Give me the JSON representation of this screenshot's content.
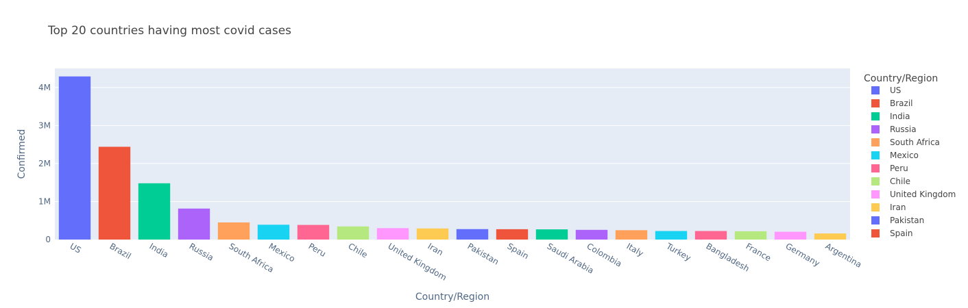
{
  "chart_data": {
    "type": "bar",
    "title": "Top 20 countries having most covid cases",
    "xlabel": "Country/Region",
    "ylabel": "Confirmed",
    "ylim": [
      0,
      4500000
    ],
    "yticks": [
      0,
      1000000,
      2000000,
      3000000,
      4000000
    ],
    "ytick_labels": [
      "0",
      "1M",
      "2M",
      "3M",
      "4M"
    ],
    "grid": true,
    "legend_title": "Country/Region",
    "legend_position": "right",
    "categories": [
      "US",
      "Brazil",
      "India",
      "Russia",
      "South Africa",
      "Mexico",
      "Peru",
      "Chile",
      "United Kingdom",
      "Iran",
      "Pakistan",
      "Spain",
      "Saudi Arabia",
      "Colombia",
      "Italy",
      "Turkey",
      "Bangladesh",
      "France",
      "Germany",
      "Argentina"
    ],
    "values": [
      4290000,
      2440000,
      1480000,
      815000,
      450000,
      390000,
      385000,
      345000,
      300000,
      292000,
      275000,
      272000,
      268000,
      255000,
      246000,
      225000,
      225000,
      218000,
      206000,
      160000
    ],
    "colors": [
      "#636efa",
      "#EF553B",
      "#00cc96",
      "#ab63fa",
      "#FFA15A",
      "#19d3f3",
      "#FF6692",
      "#B6E880",
      "#FF97FF",
      "#FECB52",
      "#636efa",
      "#EF553B",
      "#00cc96",
      "#ab63fa",
      "#FFA15A",
      "#19d3f3",
      "#FF6692",
      "#B6E880",
      "#FF97FF",
      "#FECB52"
    ],
    "legend_entries": [
      "US",
      "Brazil",
      "India",
      "Russia",
      "South Africa",
      "Mexico",
      "Peru",
      "Chile",
      "United Kingdom",
      "Iran",
      "Pakistan",
      "Spain"
    ]
  }
}
